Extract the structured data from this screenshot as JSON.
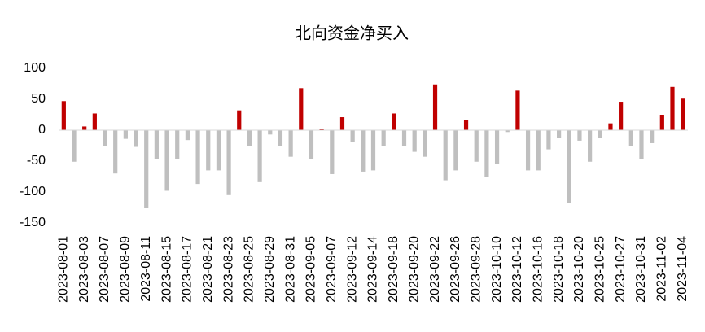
{
  "chart_data": {
    "type": "bar",
    "title": "北向资金净买入",
    "categories": [
      "2023-08-01",
      null,
      "2023-08-03",
      null,
      "2023-08-07",
      null,
      "2023-08-09",
      null,
      "2023-08-11",
      null,
      "2023-08-15",
      null,
      "2023-08-17",
      null,
      "2023-08-21",
      null,
      "2023-08-23",
      null,
      "2023-08-25",
      null,
      "2023-08-29",
      null,
      "2023-08-31",
      null,
      "2023-09-05",
      null,
      "2023-09-07",
      null,
      "2023-09-12",
      null,
      "2023-09-14",
      null,
      "2023-09-18",
      null,
      "2023-09-20",
      null,
      "2023-09-22",
      null,
      "2023-09-26",
      null,
      "2023-09-28",
      null,
      "2023-10-10",
      null,
      "2023-10-12",
      null,
      "2023-10-16",
      null,
      "2023-10-18",
      null,
      "2023-10-20",
      null,
      "2023-10-25",
      null,
      "2023-10-27",
      null,
      "2023-10-31",
      null,
      "2023-11-02",
      null,
      "2023-11-04"
    ],
    "values": [
      47,
      -51,
      6,
      27,
      -25,
      -70,
      -14,
      -27,
      -125,
      -47,
      -98,
      -47,
      -16,
      -87,
      -65,
      -65,
      -105,
      32,
      -25,
      -84,
      -7,
      -25,
      -43,
      68,
      -47,
      2,
      -71,
      21,
      -19,
      -67,
      -65,
      -25,
      27,
      -25,
      -35,
      -43,
      74,
      -81,
      -65,
      17,
      -51,
      -75,
      -55,
      -3,
      64,
      -65,
      -65,
      -31,
      -12,
      -118,
      -17,
      -51,
      -13,
      11,
      46,
      -25,
      -47,
      -21,
      25,
      70,
      51
    ],
    "color_positive": "#c00000",
    "color_negative": "#bfbfbf",
    "ylim": [
      -150,
      100
    ],
    "yticks": [
      100,
      50,
      0,
      -50,
      -100,
      -150
    ]
  }
}
